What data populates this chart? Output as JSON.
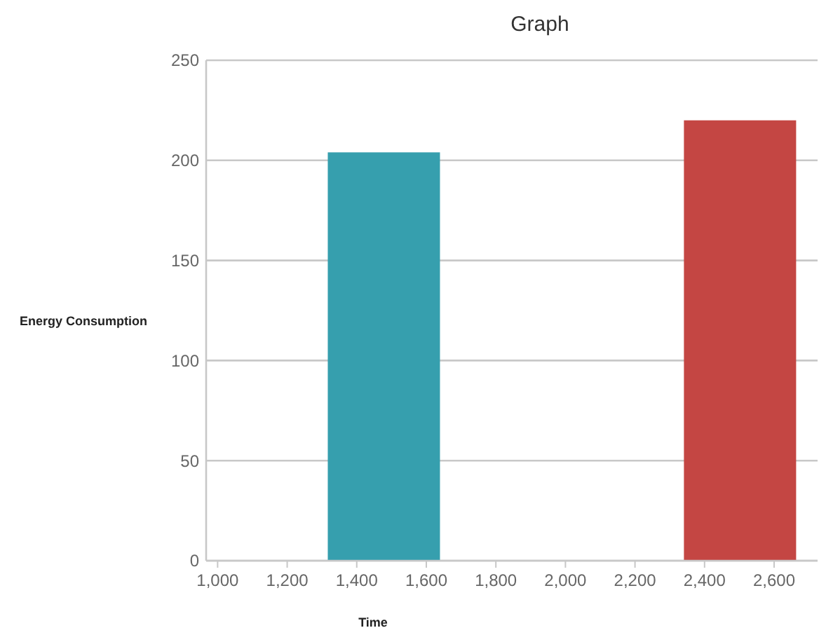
{
  "chart_data": {
    "type": "bar",
    "title": "Graph",
    "xlabel": "Time",
    "ylabel": "Energy Consumption",
    "x": [
      1478,
      2502
    ],
    "series": [
      {
        "color": "#369fae",
        "values": [
          204,
          null
        ]
      },
      {
        "color": "#c44643",
        "values": [
          null,
          220
        ]
      }
    ],
    "xlim": [
      967,
      2725
    ],
    "xticks": [
      {
        "value": 1000,
        "label": "1,000"
      },
      {
        "value": 1200,
        "label": "1,200"
      },
      {
        "value": 1400,
        "label": "1,400"
      },
      {
        "value": 1600,
        "label": "1,600"
      },
      {
        "value": 1800,
        "label": "1,800"
      },
      {
        "value": 2000,
        "label": "2,000"
      },
      {
        "value": 2200,
        "label": "2,200"
      },
      {
        "value": 2400,
        "label": "2,400"
      },
      {
        "value": 2600,
        "label": "2,600"
      }
    ],
    "ylim": [
      0,
      250
    ],
    "yticks": [
      0,
      50,
      100,
      150,
      200,
      250
    ],
    "grid": "y"
  }
}
